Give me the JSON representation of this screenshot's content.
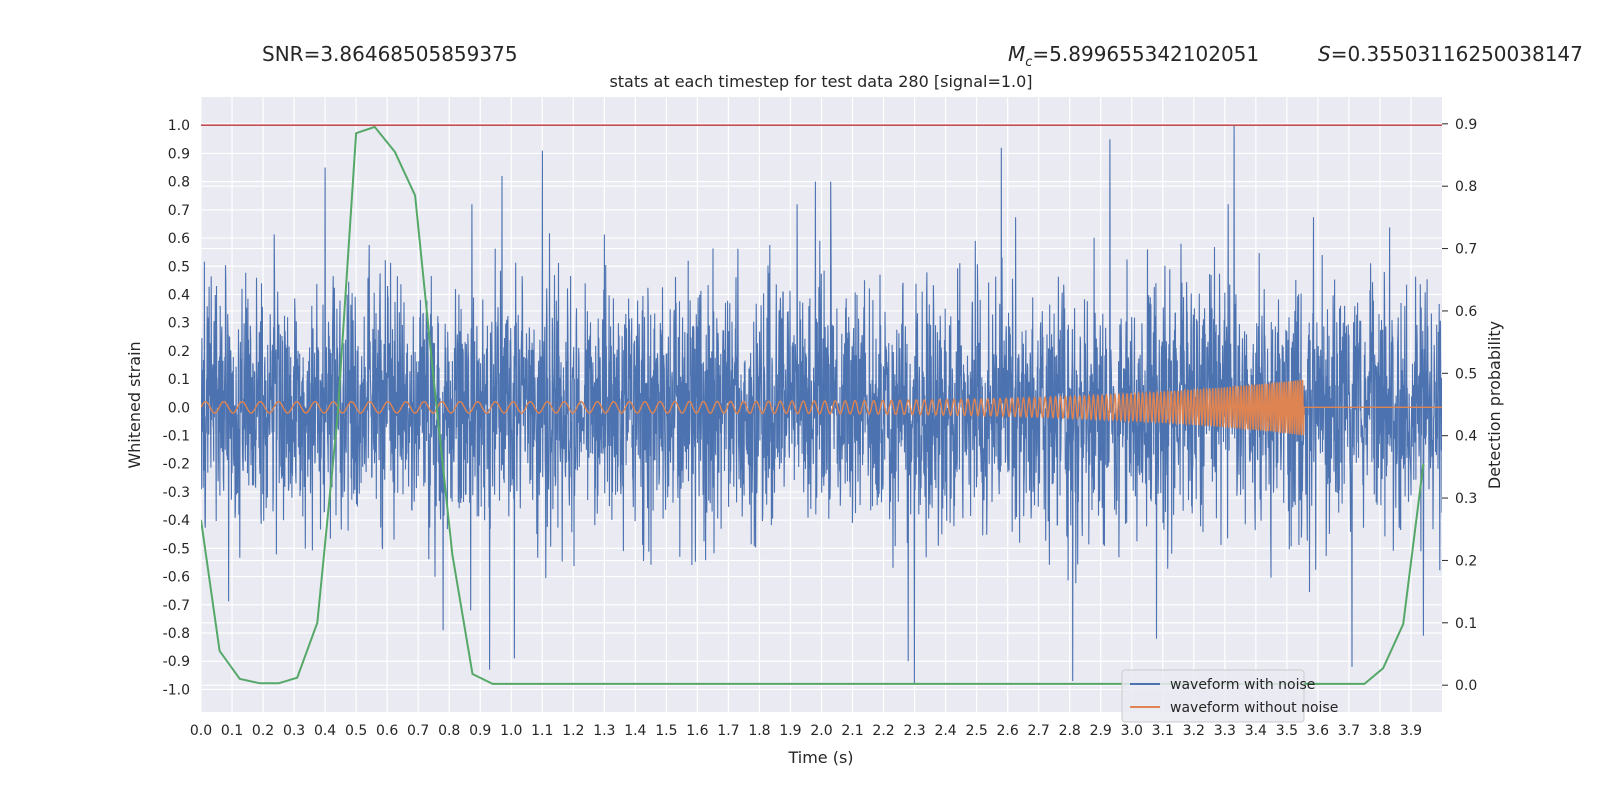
{
  "header": {
    "snr_label": "SNR",
    "snr_value": "=3.86468505859375",
    "mc_symbol": "M",
    "mc_sub": "c",
    "mc_value": "=5.899655342102051",
    "s_symbol": "S",
    "s_value": "=0.35503116250038147"
  },
  "colors": {
    "background": "#eaeaf2",
    "grid": "#ffffff",
    "noisy": "#4c72b0",
    "clean": "#dd8452",
    "probability": "#55a868",
    "threshold": "#c44e52"
  },
  "chart_data": {
    "type": "line",
    "title": "stats at each timestep for test data 280 [signal=1.0]",
    "xlabel": "Time (s)",
    "ylabel": "Whitened strain",
    "y2label": "Detection probability",
    "xlim": [
      0.0,
      4.0
    ],
    "ylim": [
      -1.08,
      1.1
    ],
    "y2lim": [
      -0.043,
      0.943
    ],
    "xticks": [
      0.0,
      0.1,
      0.2,
      0.3,
      0.4,
      0.5,
      0.6,
      0.7,
      0.8,
      0.9,
      1.0,
      1.1,
      1.2,
      1.3,
      1.4,
      1.5,
      1.6,
      1.7,
      1.8,
      1.9,
      2.0,
      2.1,
      2.2,
      2.3,
      2.4,
      2.5,
      2.6,
      2.7,
      2.8,
      2.9,
      3.0,
      3.1,
      3.2,
      3.3,
      3.4,
      3.5,
      3.6,
      3.7,
      3.8,
      3.9
    ],
    "yticks": [
      -1.0,
      -0.9,
      -0.8,
      -0.7,
      -0.6,
      -0.5,
      -0.4,
      -0.3,
      -0.2,
      -0.1,
      0.0,
      0.1,
      0.2,
      0.3,
      0.4,
      0.5,
      0.6,
      0.7,
      0.8,
      0.9,
      1.0
    ],
    "y2ticks": [
      0.0,
      0.1,
      0.2,
      0.3,
      0.4,
      0.5,
      0.6,
      0.7,
      0.8,
      0.9
    ],
    "legend_position": "lower-right",
    "grid": true,
    "series": [
      {
        "name": "waveform with noise",
        "axis": "left",
        "style": "noise",
        "typical_amplitude": 0.35,
        "peaks": [
          {
            "x": 0.4,
            "y": 0.85
          },
          {
            "x": 0.55,
            "y": -0.25
          },
          {
            "x": 0.78,
            "y": -0.79
          },
          {
            "x": 0.93,
            "y": -0.93
          },
          {
            "x": 0.97,
            "y": 0.82
          },
          {
            "x": 1.01,
            "y": -0.89
          },
          {
            "x": 1.1,
            "y": 0.91
          },
          {
            "x": 1.98,
            "y": 0.8
          },
          {
            "x": 2.03,
            "y": 0.8
          },
          {
            "x": 2.28,
            "y": -0.9
          },
          {
            "x": 2.3,
            "y": -0.98
          },
          {
            "x": 2.58,
            "y": 0.92
          },
          {
            "x": 2.81,
            "y": -0.97
          },
          {
            "x": 2.93,
            "y": 0.95
          },
          {
            "x": 3.08,
            "y": -0.82
          },
          {
            "x": 3.33,
            "y": 1.0
          },
          {
            "x": 3.71,
            "y": -0.92
          },
          {
            "x": 3.94,
            "y": -0.81
          }
        ]
      },
      {
        "name": "waveform without noise",
        "axis": "left",
        "style": "chirp",
        "start_frequency_hz": 17,
        "end_frequency_hz": 140,
        "start_amplitude": 0.02,
        "end_amplitude": 0.1,
        "merger_time": 3.555
      },
      {
        "name": "",
        "axis": "right",
        "x": [
          0.0,
          0.06,
          0.125,
          0.19,
          0.25,
          0.31,
          0.375,
          0.44,
          0.5,
          0.56,
          0.625,
          0.69,
          0.75,
          0.81,
          0.875,
          0.94,
          1.0,
          3.75,
          3.81,
          3.875,
          3.94
        ],
        "y": [
          0.265,
          0.055,
          0.01,
          0.003,
          0.003,
          0.012,
          0.1,
          0.43,
          0.885,
          0.895,
          0.855,
          0.785,
          0.49,
          0.21,
          0.018,
          0.002,
          0.002,
          0.002,
          0.027,
          0.098,
          0.355
        ]
      }
    ],
    "reference_lines": [
      {
        "axis": "left",
        "y": 1.0
      }
    ]
  }
}
